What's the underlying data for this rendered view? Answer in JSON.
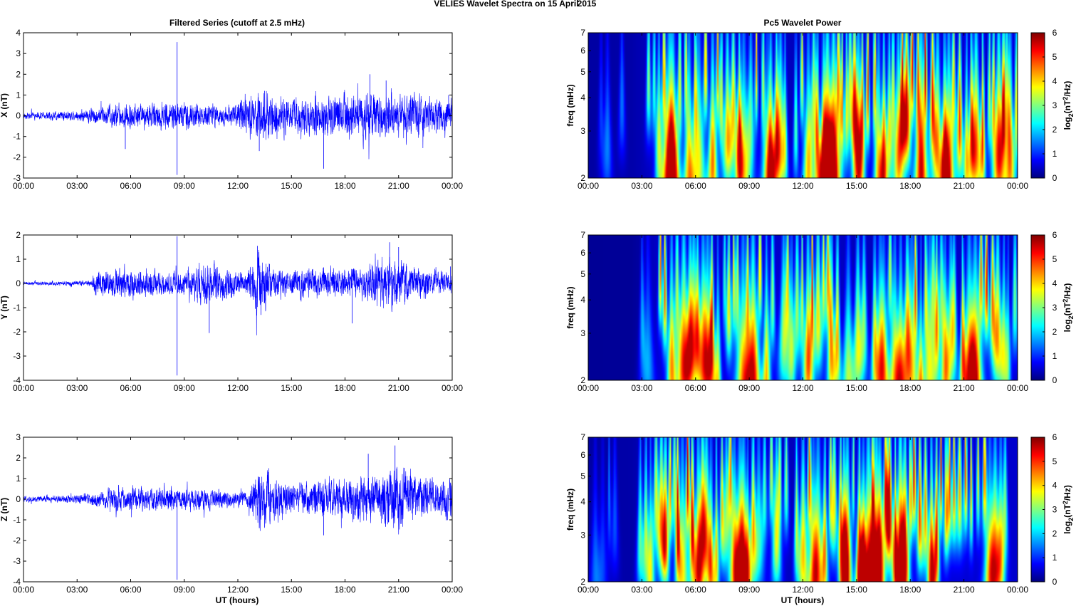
{
  "figure": {
    "title": "VELIES Wavelet Spectra on 15 April",
    "title_year": "2015",
    "left_title": "Filtered Series (cutoff at 2.5 mHz)",
    "right_title": "Pc5 Wavelet Power",
    "xlabel": "UT (hours)"
  },
  "chart_data": [
    {
      "type": "line",
      "name": "X filtered series",
      "ylabel": "X (nT)",
      "xlim": [
        0,
        24
      ],
      "ylim": [
        -3,
        4
      ],
      "xticks": [
        "00:00",
        "03:00",
        "06:00",
        "09:00",
        "12:00",
        "15:00",
        "18:00",
        "21:00",
        "00:00"
      ],
      "yticks": [
        "4",
        "3",
        "2",
        "1",
        "0",
        "-1",
        "-2",
        "-3"
      ],
      "color": "#0000ff",
      "activity": [
        [
          0,
          0.1
        ],
        [
          3,
          0.2
        ],
        [
          5.5,
          0.45
        ],
        [
          8.5,
          0.5
        ],
        [
          11.5,
          0.35
        ],
        [
          13,
          0.9
        ],
        [
          15,
          0.6
        ],
        [
          17,
          0.75
        ],
        [
          19.5,
          0.85
        ],
        [
          21,
          0.8
        ],
        [
          24,
          0.6
        ]
      ],
      "spikes": [
        [
          5.7,
          -1.6
        ],
        [
          8.6,
          3.55
        ],
        [
          8.6,
          -2.85
        ],
        [
          13.2,
          -1.7
        ],
        [
          13.5,
          1.2
        ],
        [
          16.8,
          -2.55
        ],
        [
          19.4,
          2.0
        ],
        [
          20.3,
          1.7
        ],
        [
          23.8,
          1.0
        ]
      ]
    },
    {
      "type": "line",
      "name": "Y filtered series",
      "ylabel": "Y (nT)",
      "xlim": [
        0,
        24
      ],
      "ylim": [
        -4,
        2
      ],
      "xticks": [
        "00:00",
        "03:00",
        "06:00",
        "09:00",
        "12:00",
        "15:00",
        "18:00",
        "21:00",
        "00:00"
      ],
      "yticks": [
        "2",
        "1",
        "0",
        "-1",
        "-2",
        "-3",
        "-4"
      ],
      "color": "#0000ff",
      "activity": [
        [
          0,
          0.05
        ],
        [
          3.8,
          0.08
        ],
        [
          4,
          0.4
        ],
        [
          6,
          0.45
        ],
        [
          8.5,
          0.35
        ],
        [
          10.3,
          0.7
        ],
        [
          12.5,
          0.3
        ],
        [
          13.2,
          1.1
        ],
        [
          14,
          0.4
        ],
        [
          16.5,
          0.5
        ],
        [
          18.5,
          0.45
        ],
        [
          20.5,
          0.8
        ],
        [
          22,
          0.5
        ],
        [
          24,
          0.3
        ]
      ],
      "spikes": [
        [
          8.6,
          -3.8
        ],
        [
          8.6,
          1.95
        ],
        [
          10.4,
          -2.05
        ],
        [
          13.1,
          1.55
        ],
        [
          13.3,
          -1.3
        ],
        [
          18.4,
          -1.65
        ],
        [
          20.5,
          1.7
        ],
        [
          21.0,
          1.5
        ],
        [
          23.9,
          0.7
        ]
      ]
    },
    {
      "type": "line",
      "name": "Z filtered series",
      "ylabel": "Z (nT)",
      "xlim": [
        0,
        24
      ],
      "ylim": [
        -4,
        3
      ],
      "xticks": [
        "00:00",
        "03:00",
        "06:00",
        "09:00",
        "12:00",
        "15:00",
        "18:00",
        "21:00",
        "00:00"
      ],
      "yticks": [
        "3",
        "2",
        "1",
        "0",
        "-1",
        "-2",
        "-3",
        "-4"
      ],
      "color": "#0000ff",
      "activity": [
        [
          0,
          0.1
        ],
        [
          3,
          0.15
        ],
        [
          5.5,
          0.45
        ],
        [
          8.5,
          0.4
        ],
        [
          12.5,
          0.3
        ],
        [
          13.3,
          1.1
        ],
        [
          15,
          0.55
        ],
        [
          18,
          0.7
        ],
        [
          19.5,
          0.9
        ],
        [
          21,
          1.1
        ],
        [
          22.5,
          0.7
        ],
        [
          24,
          0.7
        ]
      ],
      "spikes": [
        [
          8.6,
          -3.9
        ],
        [
          13.2,
          -1.4
        ],
        [
          16.8,
          -1.75
        ],
        [
          19.3,
          2.2
        ],
        [
          20.8,
          2.6
        ],
        [
          23.9,
          0.8
        ]
      ]
    },
    {
      "type": "heatmap",
      "name": "X wavelet power",
      "ylabel": "freq (mHz)",
      "xlim": [
        0,
        24
      ],
      "ylim": [
        2,
        7
      ],
      "yscale": "log",
      "xticks": [
        "00:00",
        "03:00",
        "06:00",
        "09:00",
        "12:00",
        "15:00",
        "18:00",
        "21:00",
        "00:00"
      ],
      "yticks": [
        "7",
        "6",
        "5",
        "4",
        "3",
        "2"
      ],
      "colorbar": {
        "label": "log2(nT^2/Hz)",
        "range": [
          0,
          6
        ],
        "ticks": [
          "6",
          "5",
          "4",
          "3",
          "2",
          "1",
          "0"
        ],
        "colormap": "jet"
      },
      "activity": [
        [
          0,
          0.2
        ],
        [
          2.4,
          0.3
        ],
        [
          3.8,
          0.75
        ],
        [
          5.6,
          0.95
        ],
        [
          8.5,
          0.7
        ],
        [
          10,
          0.75
        ],
        [
          11.6,
          0.55
        ],
        [
          13,
          1.0
        ],
        [
          14.5,
          0.85
        ],
        [
          16,
          0.95
        ],
        [
          18.5,
          1.0
        ],
        [
          20.5,
          0.9
        ],
        [
          22.3,
          0.8
        ],
        [
          23.4,
          0.9
        ]
      ]
    },
    {
      "type": "heatmap",
      "name": "Y wavelet power",
      "ylabel": "freq (mHz)",
      "xlim": [
        0,
        24
      ],
      "ylim": [
        2,
        7
      ],
      "yscale": "log",
      "xticks": [
        "00:00",
        "03:00",
        "06:00",
        "09:00",
        "12:00",
        "15:00",
        "18:00",
        "21:00",
        "00:00"
      ],
      "yticks": [
        "7",
        "6",
        "5",
        "4",
        "3",
        "2"
      ],
      "colorbar": {
        "label": "log2(nT^2/Hz)",
        "range": [
          0,
          6
        ],
        "ticks": [
          "6",
          "5",
          "4",
          "3",
          "2",
          "1",
          "0"
        ],
        "colormap": "jet"
      },
      "activity": [
        [
          0,
          0.03
        ],
        [
          2.4,
          0.05
        ],
        [
          3,
          0.25
        ],
        [
          4.2,
          0.9
        ],
        [
          5.5,
          0.85
        ],
        [
          8,
          0.65
        ],
        [
          9.8,
          0.95
        ],
        [
          11.3,
          0.6
        ],
        [
          13,
          1.0
        ],
        [
          14.5,
          0.55
        ],
        [
          17.3,
          0.7
        ],
        [
          18,
          0.85
        ],
        [
          20,
          0.6
        ],
        [
          22,
          0.95
        ],
        [
          23.5,
          0.6
        ]
      ]
    },
    {
      "type": "heatmap",
      "name": "Z wavelet power",
      "ylabel": "freq (mHz)",
      "xlim": [
        0,
        24
      ],
      "ylim": [
        2,
        7
      ],
      "yscale": "log",
      "xticks": [
        "00:00",
        "03:00",
        "06:00",
        "09:00",
        "12:00",
        "15:00",
        "18:00",
        "21:00",
        "00:00"
      ],
      "yticks": [
        "7",
        "6",
        "5",
        "4",
        "3",
        "2"
      ],
      "colorbar": {
        "label": "log2(nT^2/Hz)",
        "range": [
          0,
          6
        ],
        "ticks": [
          "6",
          "5",
          "4",
          "3",
          "2",
          "1",
          "0"
        ],
        "colormap": "jet"
      },
      "activity": [
        [
          0,
          0.2
        ],
        [
          2.4,
          0.3
        ],
        [
          3.8,
          0.75
        ],
        [
          5.6,
          0.95
        ],
        [
          8.5,
          0.7
        ],
        [
          10,
          0.65
        ],
        [
          11.6,
          0.55
        ],
        [
          13,
          1.0
        ],
        [
          14.5,
          0.85
        ],
        [
          16,
          0.95
        ],
        [
          18.5,
          1.0
        ],
        [
          20.5,
          0.9
        ],
        [
          22.3,
          0.85
        ],
        [
          23.4,
          0.8
        ]
      ]
    }
  ]
}
